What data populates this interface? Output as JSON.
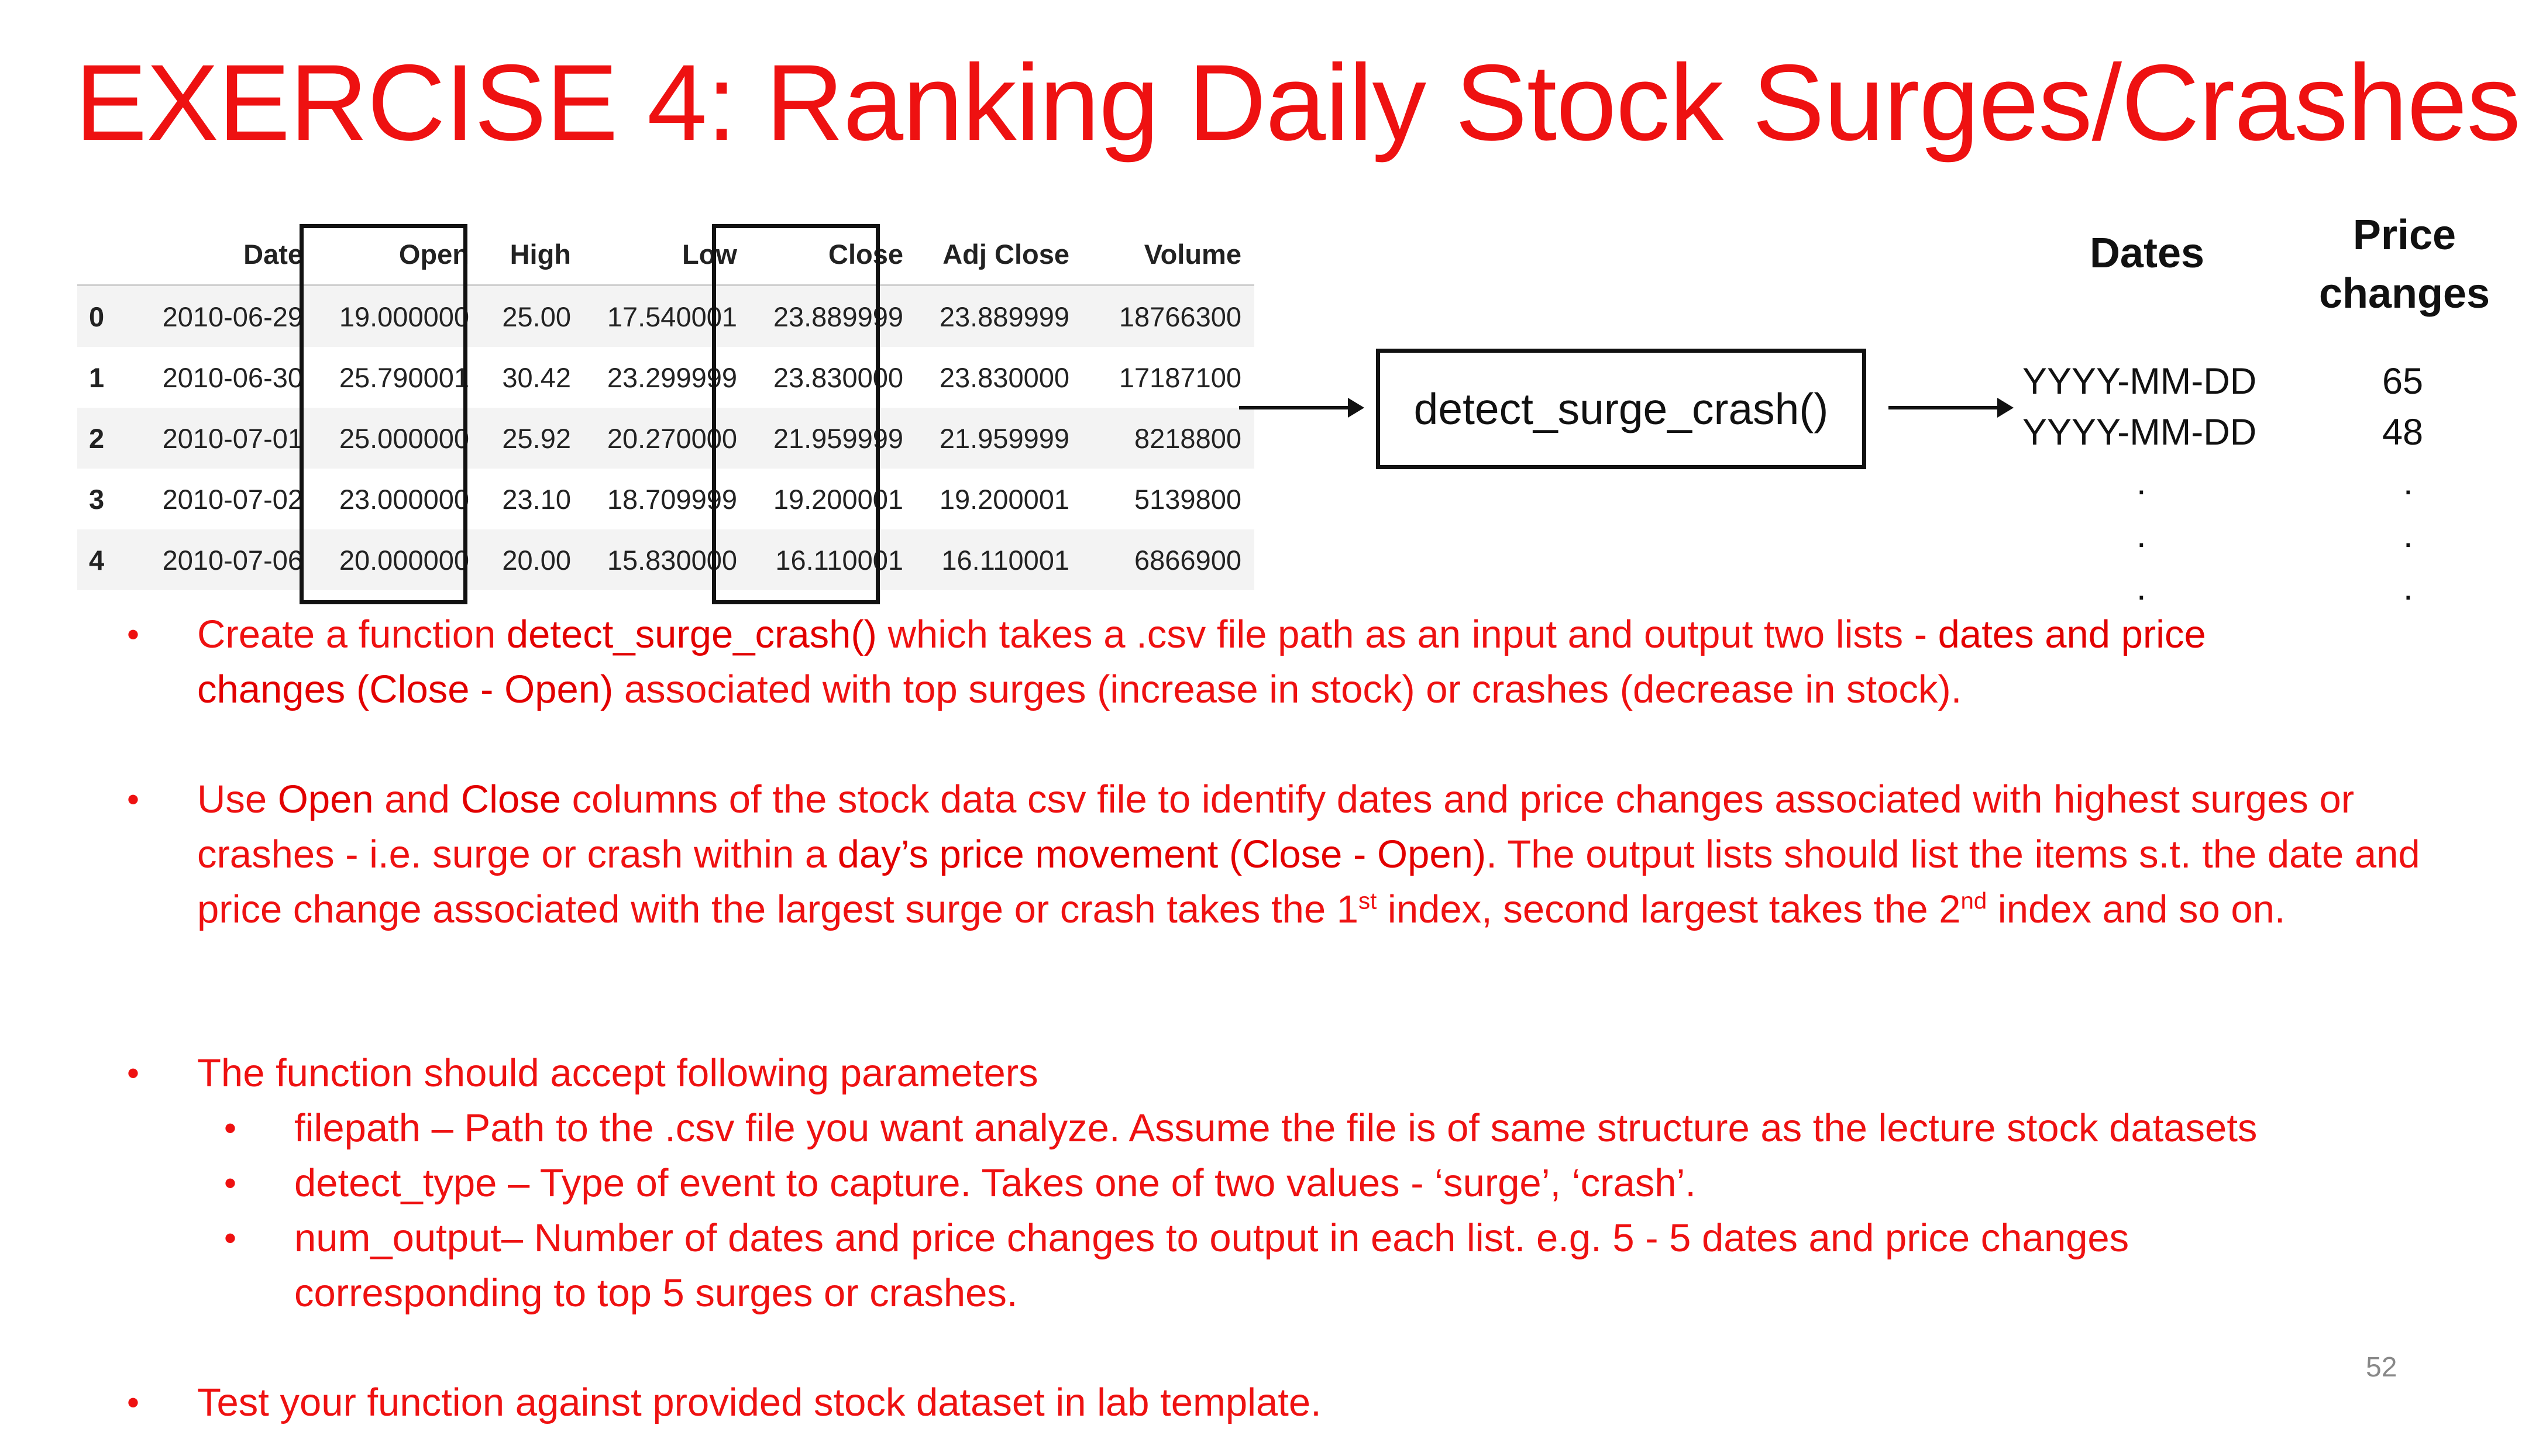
{
  "slide": {
    "title": "EXERCISE 4: Ranking Daily Stock Surges/Crashes",
    "page_number": "52"
  },
  "table": {
    "columns": [
      "",
      "Date",
      "Open",
      "High",
      "Low",
      "Close",
      "Adj Close",
      "Volume"
    ],
    "rows": [
      [
        "0",
        "2010-06-29",
        "19.000000",
        "25.00",
        "17.540001",
        "23.889999",
        "23.889999",
        "18766300"
      ],
      [
        "1",
        "2010-06-30",
        "25.790001",
        "30.42",
        "23.299999",
        "23.830000",
        "23.830000",
        "17187100"
      ],
      [
        "2",
        "2010-07-01",
        "25.000000",
        "25.92",
        "20.270000",
        "21.959999",
        "21.959999",
        "8218800"
      ],
      [
        "3",
        "2010-07-02",
        "23.000000",
        "23.10",
        "18.709999",
        "19.200001",
        "19.200001",
        "5139800"
      ],
      [
        "4",
        "2010-07-06",
        "20.000000",
        "20.00",
        "15.830000",
        "16.110001",
        "16.110001",
        "6866900"
      ]
    ]
  },
  "flow": {
    "function_label": "detect_surge_crash()",
    "dates_header": "Dates",
    "price_header_line1": "Price",
    "price_header_line2": "changes",
    "outputs": [
      {
        "date": "YYYY-MM-DD",
        "change": "65"
      },
      {
        "date": "YYYY-MM-DD",
        "change": "48"
      }
    ],
    "ellipsis_dot": "."
  },
  "bullets": {
    "b1": {
      "t1": "Create a function ",
      "e1": "detect_surge_crash()",
      "t2": " which takes a .csv file path as an input and output two lists - ",
      "e2": "dates and price changes (Close - Open)",
      "t3": " associated with top surges (increase in stock) or crashes (decrease in stock)."
    },
    "b2": {
      "t1": "Use ",
      "e1": "Open",
      "t2": " and ",
      "e2": "Close",
      "t3": " columns of the stock data csv file to identify dates and price changes associated with highest surges or crashes - i.e. surge or crash within a ",
      "e3": "day’s price movement (Close - Open)",
      "t4": ". The output lists  should list the items s.t. the date and price change associated with the largest surge or crash takes the 1",
      "sup1": "st",
      "t5": " index, second largest takes the 2",
      "sup2": "nd",
      "t6": " index and so on."
    },
    "b3": "The function should accept following parameters",
    "b4": "filepath – Path to the .csv file you want analyze. Assume the file is of same structure as the lecture stock datasets",
    "b5": "detect_type – Type of event to capture. Takes one of two values - ‘surge’, ‘crash’.",
    "b6": "num_output– Number of dates and price changes to output in each list. e.g. 5 - 5 dates and price changes corresponding to top 5 surges or crashes.",
    "b7": "Test your function against provided stock dataset in lab template.",
    "marker": "•"
  }
}
